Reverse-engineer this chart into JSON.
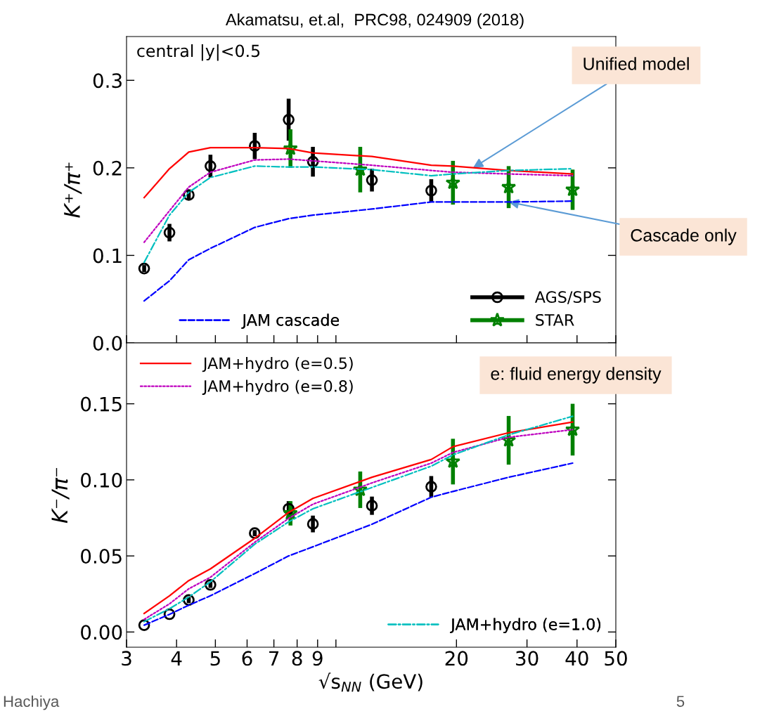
{
  "chart_data": [
    {
      "type": "line",
      "title": "Akamatsu, et.al,  PRC98, 024909 (2018)",
      "ylabel": "K⁺/π⁺",
      "annotations": [
        "central |y|<0.5",
        {
          "text": "Unified model",
          "x": 22,
          "y": 0.2
        },
        {
          "text": "Cascade only",
          "x": 27,
          "y": 0.161
        }
      ],
      "x": [
        3.32,
        3.84,
        4.29,
        4.86,
        6.27,
        7.62,
        8.76,
        12.3,
        17.3,
        19.6,
        27,
        39
      ],
      "series": [
        {
          "type": "line",
          "color": "#ff0000",
          "line_style": "solid",
          "values": [
            0.166,
            0.199,
            0.218,
            0.223,
            0.223,
            0.222,
            0.217,
            0.213,
            0.203,
            0.202,
            0.197,
            0.193
          ]
        },
        {
          "type": "line",
          "color": "#bf00bf",
          "line_style": "dotted",
          "values": [
            0.115,
            0.151,
            0.178,
            0.195,
            0.209,
            0.21,
            0.208,
            0.203,
            0.197,
            0.195,
            0.193,
            0.191
          ]
        },
        {
          "type": "line",
          "color": "#00bfbf",
          "line_style": "dashdot",
          "values": [
            0.092,
            0.146,
            0.172,
            0.189,
            0.202,
            0.201,
            0.201,
            0.198,
            0.191,
            0.193,
            0.197,
            0.199
          ]
        },
        {
          "type": "line",
          "name": "JAM cascade",
          "color": "#0000ff",
          "line_style": "dashed",
          "values": [
            0.048,
            0.071,
            0.095,
            0.108,
            0.132,
            0.142,
            0.146,
            0.153,
            0.161,
            0.161,
            0.161,
            0.162
          ]
        },
        {
          "type": "scatter",
          "name": "AGS/SPS",
          "color": "#000000",
          "marker": "circle",
          "x": [
            3.32,
            3.84,
            4.29,
            4.86,
            6.27,
            7.62,
            8.76,
            12.3,
            17.3
          ],
          "values": [
            0.085,
            0.126,
            0.169,
            0.202,
            0.225,
            0.255,
            0.207,
            0.186,
            0.174
          ],
          "errors": [
            0.004,
            0.01,
            0.005,
            0.013,
            0.015,
            0.024,
            0.017,
            0.013,
            0.013
          ]
        },
        {
          "type": "scatter",
          "name": "STAR",
          "color": "#008000",
          "marker": "star",
          "x": [
            7.7,
            11.5,
            19.6,
            27,
            39
          ],
          "values": [
            0.222,
            0.198,
            0.183,
            0.178,
            0.175
          ],
          "errors": [
            0.022,
            0.026,
            0.025,
            0.024,
            0.023
          ]
        }
      ],
      "xlim": [
        3,
        50
      ],
      "log": "x",
      "xticks": [
        3,
        4,
        5,
        6,
        7,
        8,
        9,
        {
          "value": 10,
          "label": null
        },
        20,
        30,
        40,
        50
      ],
      "ylim": [
        0,
        0.35
      ],
      "yticks": [
        {
          "value": 0,
          "label": "0.0"
        },
        0.1,
        0.2,
        0.3
      ],
      "tick_labels": "y",
      "legend": "bottom right",
      "grid": false
    },
    {
      "type": "line",
      "xlabel": "√s$_{NN}$ (GeV)",
      "ylabel": "K⁻/π⁻",
      "annotations": [
        "e: fluid energy density",
        "Hachiya",
        "5"
      ],
      "x": [
        3.32,
        3.84,
        4.29,
        4.86,
        6.27,
        7.62,
        8.76,
        12.3,
        17.3,
        19.6,
        27,
        39
      ],
      "series": [
        {
          "type": "line",
          "name": "JAM+hydro (e=0.5)",
          "color": "#ff0000",
          "line_style": "solid",
          "values": [
            0.0122,
            0.0238,
            0.0338,
            0.0415,
            0.0616,
            0.0786,
            0.0878,
            0.1017,
            0.1134,
            0.1218,
            0.131,
            0.138
          ]
        },
        {
          "type": "line",
          "name": "JAM+hydro (e=0.8)",
          "color": "#bf00bf",
          "line_style": "dotted",
          "values": [
            0.0083,
            0.0185,
            0.0284,
            0.036,
            0.059,
            0.0747,
            0.084,
            0.098,
            0.111,
            0.118,
            0.128,
            0.133
          ]
        },
        {
          "type": "line",
          "name": "JAM+hydro (e=1.0)",
          "color": "#00bfbf",
          "line_style": "dashdot",
          "values": [
            0.0068,
            0.0153,
            0.023,
            0.033,
            0.0577,
            0.0724,
            0.081,
            0.095,
            0.109,
            0.1164,
            0.1296,
            0.1418
          ]
        },
        {
          "type": "line",
          "color": "#0000ff",
          "line_style": "dashed",
          "values": [
            0.0045,
            0.0116,
            0.0176,
            0.0238,
            0.0384,
            0.05,
            0.056,
            0.0708,
            0.0886,
            0.0924,
            0.1017,
            0.111
          ]
        },
        {
          "type": "scatter",
          "color": "#000000",
          "marker": "circle",
          "x": [
            3.32,
            3.84,
            4.29,
            4.86,
            6.27,
            7.62,
            8.76,
            12.3,
            17.3
          ],
          "values": [
            0.0045,
            0.0117,
            0.021,
            0.031,
            0.065,
            0.081,
            0.071,
            0.083,
            0.0955
          ],
          "errors": [
            null,
            null,
            0.002,
            0.002,
            0.002,
            0.005,
            0.0055,
            0.006,
            0.007
          ]
        },
        {
          "type": "scatter",
          "color": "#008000",
          "marker": "star",
          "x": [
            7.7,
            11.5,
            19.6,
            27,
            39
          ],
          "values": [
            0.078,
            0.0935,
            0.112,
            0.126,
            0.133
          ],
          "errors": [
            0.008,
            0.012,
            0.015,
            0.016,
            0.017
          ]
        }
      ],
      "xlim": [
        3,
        50
      ],
      "log": "x",
      "xticks": [
        3,
        4,
        5,
        6,
        7,
        8,
        9,
        {
          "value": 10,
          "label": null
        },
        20,
        30,
        40,
        50
      ],
      "ylim": [
        -0.01,
        0.19
      ],
      "yticks": [
        {
          "value": 0,
          "label": "0.00"
        },
        {
          "value": 0.05,
          "label": "0.05"
        },
        {
          "value": 0.1,
          "label": "0.10"
        },
        {
          "value": 0.15,
          "label": "0.15"
        }
      ],
      "legend": "top left",
      "grid": false
    }
  ]
}
